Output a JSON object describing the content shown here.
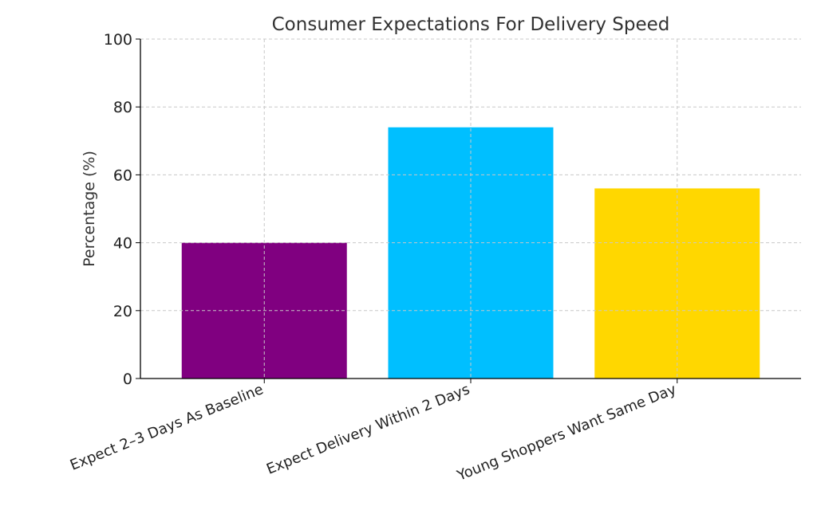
{
  "chart_data": {
    "type": "bar",
    "title": "Consumer Expectations For Delivery Speed",
    "ylabel": "Percentage (%)",
    "xlabel": "",
    "categories": [
      "Expect 2–3 Days As Baseline",
      "Expect Delivery Within 2 Days",
      "Young Shoppers Want Same Day"
    ],
    "values": [
      40,
      74,
      56
    ],
    "colors": [
      "#800080",
      "#00bfff",
      "#ffd700"
    ],
    "ylim": [
      0,
      100
    ],
    "yticks": [
      "0",
      "20",
      "40",
      "60",
      "80",
      "100"
    ],
    "grid": true,
    "legend": "none"
  }
}
